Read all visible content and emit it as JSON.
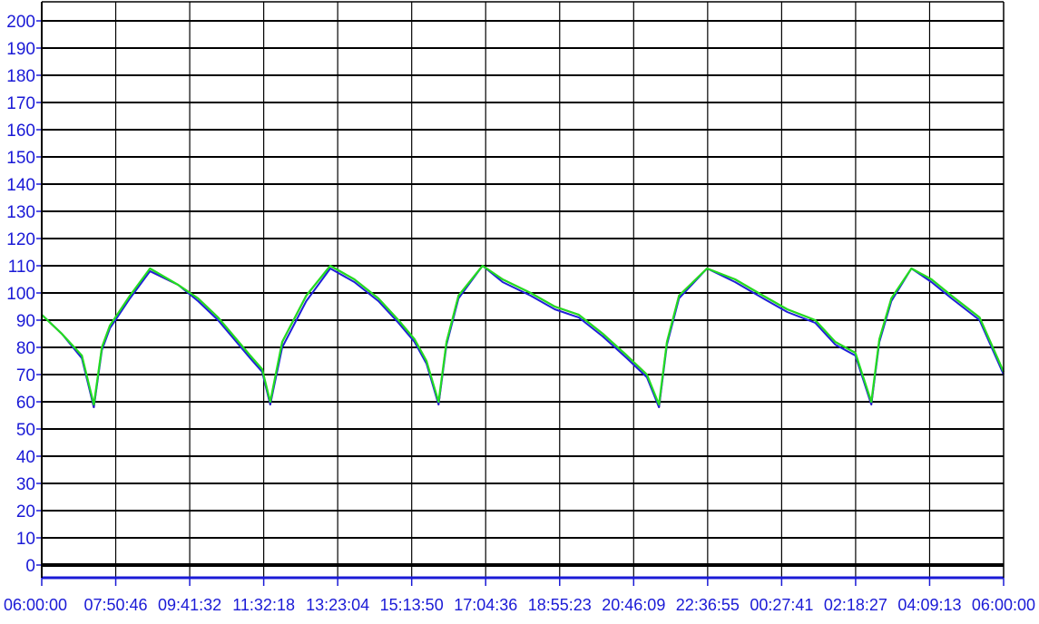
{
  "chart_data": {
    "type": "line",
    "title": "",
    "xlabel": "",
    "ylabel": "",
    "ylim": [
      -5,
      205
    ],
    "y_ticks": [
      "0",
      "10",
      "20",
      "30",
      "40",
      "50",
      "60",
      "70",
      "80",
      "90",
      "100",
      "110",
      "120",
      "130",
      "140",
      "150",
      "160",
      "170",
      "180",
      "190",
      "200"
    ],
    "x_ticks": [
      "06:00:00",
      "07:50:46",
      "09:41:32",
      "11:32:18",
      "13:23:04",
      "15:13:50",
      "17:04:36",
      "18:55:23",
      "20:46:09",
      "22:36:55",
      "00:27:41",
      "02:18:27",
      "04:09:13",
      "06:00:00"
    ],
    "grid": true,
    "legend": "none",
    "x_hours": [
      0,
      0.5,
      1.0,
      1.3,
      1.5,
      1.7,
      2.2,
      2.7,
      3.4,
      3.9,
      4.4,
      4.8,
      5.2,
      5.5,
      5.7,
      6.0,
      6.6,
      7.2,
      7.8,
      8.4,
      8.9,
      9.3,
      9.6,
      9.9,
      10.1,
      10.4,
      11.0,
      11.5,
      12.2,
      12.8,
      13.4,
      14.0,
      14.6,
      15.1,
      15.4,
      15.6,
      15.9,
      16.6,
      17.3,
      18.0,
      18.6,
      19.3,
      19.8,
      20.3,
      20.7,
      20.9,
      21.2,
      21.7,
      22.2,
      22.7,
      23.4,
      24.0
    ],
    "series": [
      {
        "color": "#d81f1f",
        "values": [
          92,
          85,
          77,
          58,
          80,
          88,
          99,
          108,
          103,
          98,
          91,
          84,
          77,
          72,
          59,
          82,
          99,
          110,
          105,
          98,
          90,
          83,
          75,
          59,
          82,
          99,
          110,
          105,
          100,
          95,
          92,
          85,
          77,
          70,
          58,
          82,
          99,
          109,
          105,
          99,
          94,
          90,
          82,
          78,
          59,
          83,
          98,
          109,
          105,
          99,
          91,
          71
        ]
      },
      {
        "color": "#1f1fd8",
        "values": [
          92,
          85,
          76,
          58,
          79,
          87,
          98,
          108,
          103,
          97,
          90,
          83,
          76,
          71,
          59,
          80,
          97,
          109,
          104,
          97,
          89,
          82,
          74,
          59,
          81,
          98,
          110,
          104,
          99,
          94,
          91,
          84,
          76,
          69,
          58,
          81,
          98,
          109,
          104,
          98,
          93,
          89,
          81,
          77,
          59,
          82,
          97,
          109,
          104,
          98,
          90,
          70
        ]
      },
      {
        "color": "#22dd22",
        "values": [
          92,
          85,
          77,
          59,
          80,
          88,
          99,
          109,
          103,
          98,
          91,
          84,
          77,
          72,
          60,
          82,
          99,
          110,
          105,
          98,
          90,
          83,
          75,
          60,
          82,
          99,
          110,
          105,
          100,
          95,
          92,
          85,
          77,
          70,
          59,
          82,
          99,
          109,
          105,
          99,
          94,
          90,
          82,
          78,
          60,
          83,
          98,
          109,
          105,
          99,
          91,
          71
        ]
      }
    ]
  }
}
